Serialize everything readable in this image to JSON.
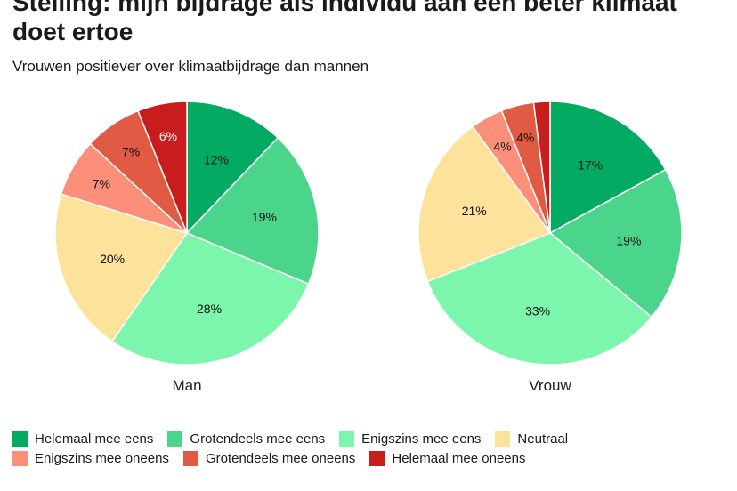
{
  "chart_data": {
    "type": "pie",
    "title": "Stelling: mijn bijdrage als individu aan een beter klimaat doet ertoe",
    "subtitle": "Vrouwen positiever over klimaatbijdrage dan mannen",
    "categories": [
      "Helemaal mee eens",
      "Grotendeels mee eens",
      "Enigszins mee eens",
      "Neutraal",
      "Enigszins mee oneens",
      "Grotendeels mee oneens",
      "Helemaal mee oneens"
    ],
    "colors": [
      "#03ab62",
      "#4bd58b",
      "#7cf5ad",
      "#fde29c",
      "#fb8f79",
      "#e05a44",
      "#c91d1d"
    ],
    "series": [
      {
        "name": "Man",
        "values": [
          12,
          19,
          28,
          20,
          7,
          7,
          6
        ]
      },
      {
        "name": "Vrouw",
        "values": [
          17,
          19,
          33,
          21,
          4,
          4,
          2
        ]
      }
    ],
    "labels": [
      [
        "12%",
        "19%",
        "28%",
        "20%",
        "7%",
        "7%",
        "6%"
      ],
      [
        "17%",
        "19%",
        "33%",
        "21%",
        "4%",
        "4%",
        ""
      ]
    ],
    "legend_position": "bottom"
  }
}
